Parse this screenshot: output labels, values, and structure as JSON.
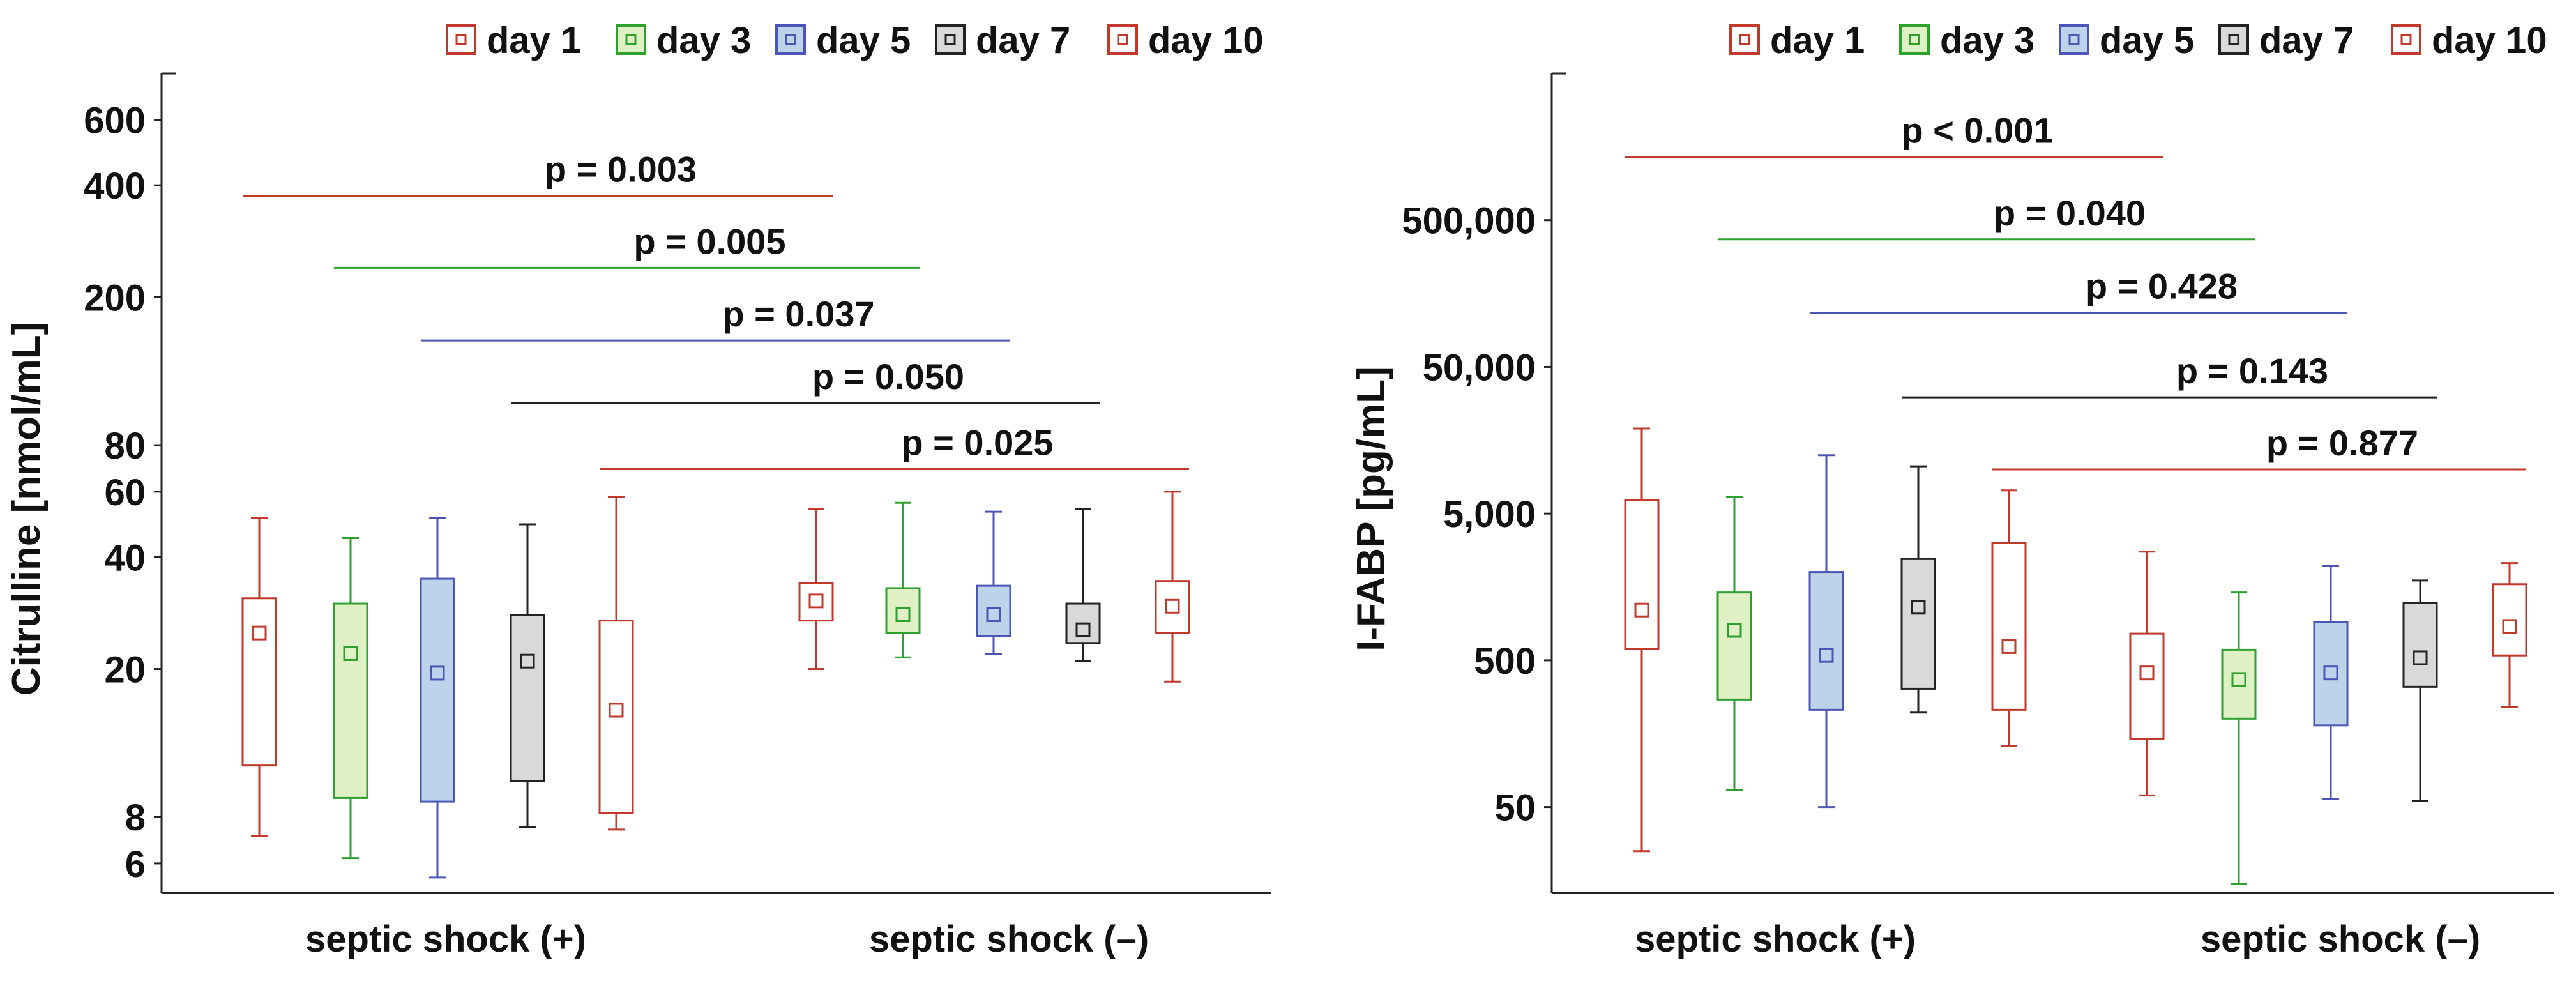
{
  "colors": {
    "red": "#c0392b",
    "green": "#2ea02e",
    "blue": "#4a55b5",
    "black": "#222222",
    "fill_red": "#ffffff",
    "fill_green": "#dff0c4",
    "fill_blue": "#bcd3ea",
    "fill_gray": "#d9d9d9"
  },
  "chart_data": [
    {
      "type": "box",
      "ylabel": "Citrulline [nmol/mL]",
      "yscale": "log",
      "ylim": [
        5,
        800
      ],
      "yticks": [
        6,
        8,
        20,
        40,
        60,
        80,
        200,
        400,
        600
      ],
      "ytick_labels": [
        "6",
        "8",
        "20",
        "40",
        "60",
        "80",
        "200",
        "400",
        "600"
      ],
      "groups": [
        "septic shock (+)",
        "septic shock (–)"
      ],
      "legend": [
        {
          "label": "day 1",
          "fill": "fill_red",
          "edge": "red"
        },
        {
          "label": "day 3",
          "fill": "fill_green",
          "edge": "green"
        },
        {
          "label": "day 5",
          "fill": "fill_blue",
          "edge": "blue"
        },
        {
          "label": "day  7",
          "fill": "fill_gray",
          "edge": "black"
        },
        {
          "label": "day 10",
          "fill": "fill_red",
          "edge": "red"
        }
      ],
      "boxes": [
        {
          "group": 0,
          "day": "day 1",
          "min": 7.1,
          "q1": 11,
          "median": 25,
          "q3": 31,
          "max": 51
        },
        {
          "group": 0,
          "day": "day 3",
          "min": 6.2,
          "q1": 9,
          "median": 22,
          "q3": 30,
          "max": 45
        },
        {
          "group": 0,
          "day": "day 5",
          "min": 5.5,
          "q1": 8.8,
          "median": 19.5,
          "q3": 35,
          "max": 51
        },
        {
          "group": 0,
          "day": "day  7",
          "min": 7.5,
          "q1": 10,
          "median": 21,
          "q3": 28,
          "max": 49
        },
        {
          "group": 0,
          "day": "day 10",
          "min": 7.4,
          "q1": 8.2,
          "median": 15.5,
          "q3": 27,
          "max": 58
        },
        {
          "group": 1,
          "day": "day 1",
          "min": 20,
          "q1": 27,
          "median": 30.5,
          "q3": 34,
          "max": 54
        },
        {
          "group": 1,
          "day": "day 3",
          "min": 21.5,
          "q1": 25,
          "median": 28,
          "q3": 33,
          "max": 56
        },
        {
          "group": 1,
          "day": "day 5",
          "min": 22,
          "q1": 24.5,
          "median": 28,
          "q3": 33.5,
          "max": 53
        },
        {
          "group": 1,
          "day": "day  7",
          "min": 21,
          "q1": 23.5,
          "median": 25.5,
          "q3": 30,
          "max": 54
        },
        {
          "group": 1,
          "day": "day 10",
          "min": 18.5,
          "q1": 25,
          "median": 29.5,
          "q3": 34.5,
          "max": 60
        }
      ],
      "comparisons": [
        {
          "label": "p = 0.003",
          "day_index": 0,
          "y": 375,
          "color": "red"
        },
        {
          "label": "p = 0.005",
          "day_index": 1,
          "y": 240,
          "color": "green"
        },
        {
          "label": "p = 0.037",
          "day_index": 2,
          "y": 153,
          "color": "blue"
        },
        {
          "label": "p = 0.050",
          "day_index": 3,
          "y": 104,
          "color": "black"
        },
        {
          "label": "p = 0.025",
          "day_index": 4,
          "y": 69,
          "color": "red"
        }
      ]
    },
    {
      "type": "box",
      "ylabel": "I-FABP [pg/mL]",
      "yscale": "log",
      "ylim": [
        13,
        5000000
      ],
      "yticks": [
        50,
        500,
        5000,
        50000,
        500000
      ],
      "ytick_labels": [
        "50",
        "500",
        "5,000",
        "50,000",
        "500,000"
      ],
      "groups": [
        "septic shock (+)",
        "septic shock (–)"
      ],
      "legend": [
        {
          "label": "day 1",
          "fill": "fill_red",
          "edge": "red"
        },
        {
          "label": "day 3",
          "fill": "fill_green",
          "edge": "green"
        },
        {
          "label": "day 5",
          "fill": "fill_blue",
          "edge": "blue"
        },
        {
          "label": "day  7",
          "fill": "fill_gray",
          "edge": "black"
        },
        {
          "label": "day 10",
          "fill": "fill_red",
          "edge": "red"
        }
      ],
      "boxes": [
        {
          "group": 0,
          "day": "day 1",
          "min": 25,
          "q1": 600,
          "median": 1100,
          "q3": 6200,
          "max": 19000
        },
        {
          "group": 0,
          "day": "day 3",
          "min": 65,
          "q1": 270,
          "median": 800,
          "q3": 1450,
          "max": 6500
        },
        {
          "group": 0,
          "day": "day 5",
          "min": 50,
          "q1": 230,
          "median": 540,
          "q3": 2000,
          "max": 12500
        },
        {
          "group": 0,
          "day": "day  7",
          "min": 220,
          "q1": 320,
          "median": 1150,
          "q3": 2450,
          "max": 10500
        },
        {
          "group": 0,
          "day": "day 10",
          "min": 130,
          "q1": 230,
          "median": 620,
          "q3": 3150,
          "max": 7200
        },
        {
          "group": 1,
          "day": "day 1",
          "min": 60,
          "q1": 145,
          "median": 410,
          "q3": 760,
          "max": 2750
        },
        {
          "group": 1,
          "day": "day 3",
          "min": 15,
          "q1": 200,
          "median": 370,
          "q3": 590,
          "max": 1450
        },
        {
          "group": 1,
          "day": "day 5",
          "min": 57,
          "q1": 180,
          "median": 410,
          "q3": 910,
          "max": 2200
        },
        {
          "group": 1,
          "day": "day  7",
          "min": 55,
          "q1": 330,
          "median": 520,
          "q3": 1230,
          "max": 1750
        },
        {
          "group": 1,
          "day": "day 10",
          "min": 240,
          "q1": 540,
          "median": 850,
          "q3": 1650,
          "max": 2300
        }
      ],
      "comparisons": [
        {
          "label": "p < 0.001",
          "day_index": 0,
          "y": 1350000,
          "color": "red"
        },
        {
          "label": "p = 0.040",
          "day_index": 1,
          "y": 370000,
          "color": "green"
        },
        {
          "label": "p = 0.428",
          "day_index": 2,
          "y": 117000,
          "color": "blue"
        },
        {
          "label": "p = 0.143",
          "day_index": 3,
          "y": 31000,
          "color": "black"
        },
        {
          "label": "p = 0.877",
          "day_index": 4,
          "y": 10000,
          "color": "red"
        }
      ]
    }
  ]
}
